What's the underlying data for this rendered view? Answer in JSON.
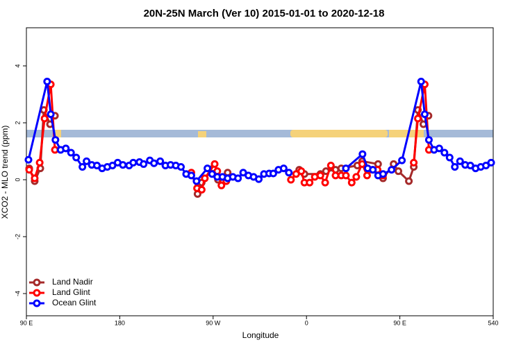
{
  "chart_data": {
    "type": "line",
    "title": "20N-25N March (Ver 10)   2015-01-01 to 2020-12-18",
    "x_label": "Longitude",
    "y_label": "XCO2 - MLO trend (ppm)",
    "xlim": [
      90,
      540
    ],
    "xticks": [
      {
        "value": 90,
        "label": "90 E"
      },
      180,
      {
        "value": 270,
        "label": "90 W"
      },
      {
        "value": 360,
        "label": "0"
      },
      {
        "value": 450,
        "label": "90 E"
      },
      540
    ],
    "ylim": [
      -4.78,
      5.34
    ],
    "yticks": [
      -4,
      -2,
      0,
      2,
      4
    ],
    "legend": "bottom-left",
    "series": [
      {
        "name": "Land Nadir",
        "color": "#a52a2a",
        "x": [
          92.7,
          98,
          103.4,
          106.8,
          112.8,
          117.5,
          null,
          255,
          259,
          270,
          274.7,
          284,
          null,
          353,
          358,
          373.4,
          378.8,
          388,
          393.5,
          409,
          413.7,
          429,
          433.8,
          444,
          448.6,
          458.7,
          463.4,
          467.4,
          472.7,
          477.6
        ],
        "values": [
          0.4,
          -0.05,
          0.4,
          2.45,
          1.95,
          2.25,
          null,
          -0.5,
          -0.1,
          0.4,
          0.0,
          0.25,
          null,
          0.35,
          0.2,
          0.2,
          0.3,
          0.35,
          0.4,
          0.5,
          0.65,
          0.55,
          0.05,
          0.55,
          0.3,
          -0.05,
          0.45,
          2.45,
          1.95,
          2.25
        ]
      },
      {
        "name": "Land Glint",
        "color": "#ff0000",
        "x": [
          92.7,
          98,
          102.8,
          107.5,
          113.5,
          117.5,
          null,
          249,
          254.5,
          259,
          262,
          271.5,
          274,
          278,
          282.7,
          null,
          345,
          350,
          355,
          358,
          363,
          368,
          373.4,
          378,
          383.5,
          388,
          393.5,
          398,
          403.6,
          408,
          413.7,
          418.4,
          423.8,
          428.5,
          433.8,
          null,
          463.4,
          467.4,
          474,
          478
        ],
        "values": [
          0.35,
          0.05,
          0.6,
          2.15,
          3.35,
          1.05,
          null,
          0.25,
          -0.3,
          -0.35,
          0.05,
          0.55,
          0.3,
          -0.2,
          -0.05,
          null,
          0.0,
          0.2,
          0.3,
          -0.1,
          -0.1,
          0.1,
          0.15,
          -0.1,
          0.5,
          0.15,
          0.15,
          0.15,
          -0.1,
          0.1,
          0.55,
          0.15,
          0.35,
          0.35,
          0.15,
          null,
          0.6,
          2.15,
          3.35,
          1.05
        ]
      },
      {
        "name": "Ocean Glint",
        "color": "#0000ff",
        "x": [
          92,
          110,
          113.5,
          118,
          123,
          128,
          133,
          138,
          144,
          148,
          153,
          158,
          163,
          168,
          173,
          178,
          183,
          189,
          193,
          199,
          203,
          209,
          213,
          219,
          224,
          229,
          234,
          239,
          244,
          249,
          254,
          264.5,
          269,
          274,
          279,
          284,
          289,
          294,
          299,
          304,
          309,
          314,
          319,
          324,
          328,
          333,
          338,
          343,
          null,
          398,
          414,
          419,
          424,
          429,
          433.8,
          442,
          452,
          470.5,
          474,
          478,
          483,
          488,
          493,
          498,
          503,
          508,
          513,
          518,
          523,
          528,
          533,
          538
        ],
        "values": [
          0.7,
          3.45,
          2.3,
          1.4,
          1.05,
          1.1,
          0.95,
          0.78,
          0.45,
          0.65,
          0.52,
          0.5,
          0.4,
          0.45,
          0.5,
          0.6,
          0.52,
          0.5,
          0.6,
          0.62,
          0.55,
          0.68,
          0.58,
          0.65,
          0.5,
          0.52,
          0.5,
          0.45,
          0.2,
          0.15,
          -0.05,
          0.4,
          0.2,
          0.1,
          0.1,
          0.05,
          0.1,
          0.05,
          0.25,
          0.15,
          0.1,
          0.02,
          0.2,
          0.22,
          0.22,
          0.35,
          0.4,
          0.25,
          null,
          0.4,
          0.9,
          0.4,
          0.35,
          0.15,
          0.2,
          0.35,
          0.68,
          3.45,
          2.3,
          1.4,
          1.05,
          1.1,
          0.95,
          0.78,
          0.45,
          0.65,
          0.52,
          0.5,
          0.4,
          0.45,
          0.5,
          0.6
        ]
      }
    ]
  }
}
